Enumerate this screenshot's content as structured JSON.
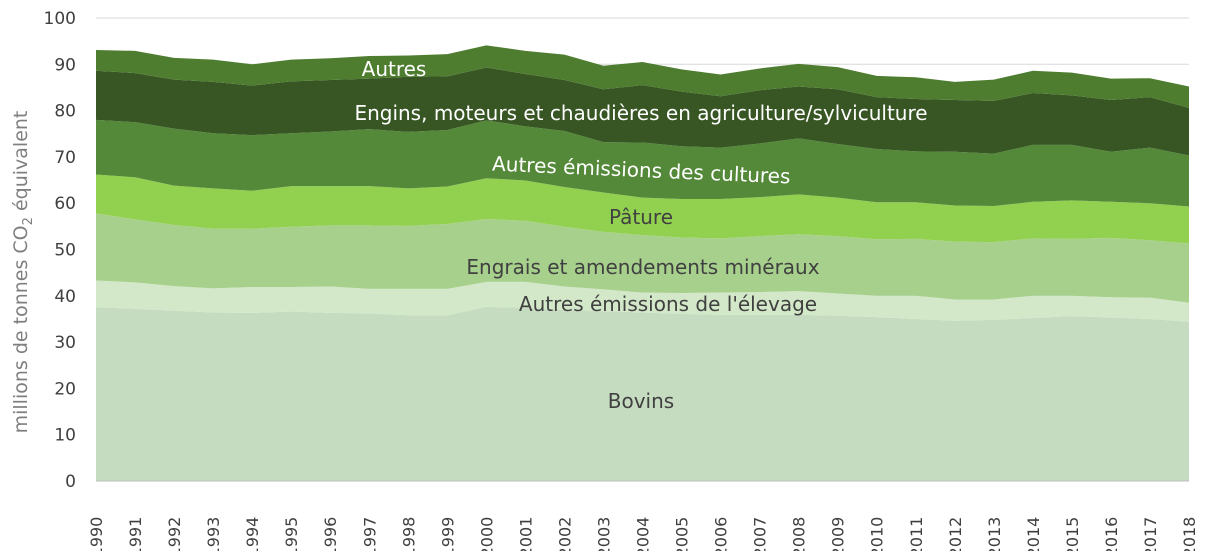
{
  "chart_data": {
    "type": "area",
    "stacked": true,
    "title": "",
    "xlabel": "",
    "ylabel": "millions de tonnes CO2 équivalent",
    "ylabel_parts": {
      "before": "millions de tonnes CO",
      "sub": "2",
      "after": " équivalent"
    },
    "ylim": [
      0,
      100
    ],
    "yticks": [
      0,
      10,
      20,
      30,
      40,
      50,
      60,
      70,
      80,
      90,
      100
    ],
    "grid": "horizontal",
    "legend": "inline labels",
    "x": [
      "1990",
      "1991",
      "1992",
      "1993",
      "1994",
      "1995",
      "1996",
      "1997",
      "1998",
      "1999",
      "2000",
      "2001",
      "2002",
      "2003",
      "2004",
      "2005",
      "2006",
      "2007",
      "2008",
      "2009",
      "2010",
      "2011",
      "2012",
      "2013",
      "2014",
      "2015",
      "2016",
      "2017",
      "2018"
    ],
    "series": [
      {
        "name": "Bovins",
        "color": "#c6dcc1",
        "values": [
          37.5,
          37.2,
          36.8,
          36.4,
          36.3,
          36.6,
          36.3,
          36.2,
          35.8,
          35.8,
          37.6,
          37.4,
          37.0,
          36.7,
          36.4,
          36.1,
          35.9,
          35.9,
          35.9,
          35.7,
          35.4,
          35.0,
          34.6,
          34.8,
          35.2,
          35.6,
          35.3,
          35.0,
          34.4
        ]
      },
      {
        "name": "Autres émissions de l'élevage",
        "color": "#d3e8c8",
        "values": [
          5.8,
          5.7,
          5.3,
          5.2,
          5.6,
          5.3,
          5.7,
          5.3,
          5.7,
          5.7,
          5.4,
          5.6,
          5.0,
          4.7,
          4.3,
          4.5,
          4.8,
          4.9,
          5.1,
          4.8,
          4.6,
          5.0,
          4.6,
          4.4,
          4.8,
          4.4,
          4.4,
          4.6,
          4.1
        ]
      },
      {
        "name": "Engrais et amendements minéraux",
        "color": "#a8d08d",
        "values": [
          14.5,
          13.6,
          13.2,
          12.9,
          12.6,
          13.0,
          13.2,
          13.7,
          13.6,
          14.0,
          13.6,
          13.2,
          12.9,
          12.4,
          12.4,
          12.0,
          11.7,
          12.1,
          12.3,
          12.4,
          12.2,
          12.3,
          12.5,
          12.4,
          12.4,
          12.3,
          12.8,
          12.4,
          12.8
        ]
      },
      {
        "name": "Pâture",
        "color": "#92d050",
        "values": [
          8.4,
          9.1,
          8.5,
          8.7,
          8.2,
          8.8,
          8.5,
          8.5,
          8.1,
          8.1,
          8.8,
          8.7,
          8.6,
          8.5,
          8.1,
          8.3,
          8.5,
          8.4,
          8.6,
          8.3,
          8.0,
          7.9,
          7.8,
          7.8,
          7.9,
          8.3,
          7.8,
          8.0,
          8.0
        ]
      },
      {
        "name": "Autres émissions des cultures",
        "color": "#55893a",
        "values": [
          11.8,
          11.9,
          12.3,
          11.9,
          12.0,
          11.4,
          11.8,
          12.3,
          12.2,
          12.2,
          12.5,
          11.7,
          12.1,
          10.9,
          11.9,
          11.4,
          11.1,
          11.6,
          12.1,
          11.6,
          11.5,
          11.0,
          11.6,
          11.3,
          12.3,
          12.0,
          10.8,
          12.0,
          11.0
        ]
      },
      {
        "name": "Engins, moteurs et chaudières en agriculture/sylviculture",
        "color": "#375623",
        "values": [
          10.6,
          10.6,
          10.6,
          11.1,
          10.7,
          11.2,
          11.1,
          10.9,
          11.9,
          11.6,
          11.4,
          11.3,
          11.0,
          11.4,
          12.4,
          11.8,
          11.1,
          11.5,
          11.2,
          11.8,
          11.2,
          11.3,
          11.2,
          11.4,
          11.2,
          10.7,
          11.2,
          10.9,
          10.3
        ]
      },
      {
        "name": "Autres",
        "color": "#4e7d30",
        "values": [
          4.5,
          4.8,
          4.7,
          4.8,
          4.6,
          4.7,
          4.7,
          4.9,
          4.6,
          4.8,
          4.8,
          5.0,
          5.5,
          5.1,
          5.0,
          4.8,
          4.7,
          4.7,
          4.9,
          4.8,
          4.6,
          4.7,
          3.9,
          4.6,
          4.8,
          4.9,
          4.6,
          4.1,
          4.6
        ]
      }
    ],
    "labels": [
      {
        "text": "Bovins",
        "series": 0
      },
      {
        "text": "Autres émissions de l'élevage",
        "series": 1
      },
      {
        "text": "Engrais et amendements minéraux",
        "series": 2
      },
      {
        "text": "Pâture",
        "series": 3
      },
      {
        "text": "Autres émissions des cultures",
        "series": 4
      },
      {
        "text": "Engins, moteurs et chaudières en agriculture/sylviculture",
        "series": 5
      },
      {
        "text": "Autres",
        "series": 6
      }
    ]
  }
}
